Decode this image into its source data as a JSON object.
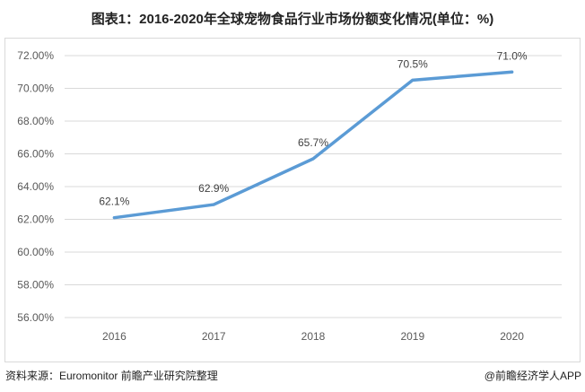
{
  "title": "图表1：2016-2020年全球宠物食品行业市场份额变化情况(单位：%)",
  "source": "资料来源：Euromonitor 前瞻产业研究院整理",
  "brand": "@前瞻经济学人APP",
  "chart_data": {
    "type": "line",
    "title": "图表1：2016-2020年全球宠物食品行业市场份额变化情况(单位：%)",
    "categories": [
      "2016",
      "2017",
      "2018",
      "2019",
      "2020"
    ],
    "values": [
      62.1,
      62.9,
      65.7,
      70.5,
      71.0
    ],
    "data_labels": [
      "62.1%",
      "62.9%",
      "65.7%",
      "70.5%",
      "71.0%"
    ],
    "ylim": [
      56,
      72
    ],
    "yticks": [
      "56.00%",
      "58.00%",
      "60.00%",
      "62.00%",
      "64.00%",
      "66.00%",
      "68.00%",
      "70.00%",
      "72.00%"
    ],
    "grid": true,
    "line_color": "#5b9bd5"
  }
}
